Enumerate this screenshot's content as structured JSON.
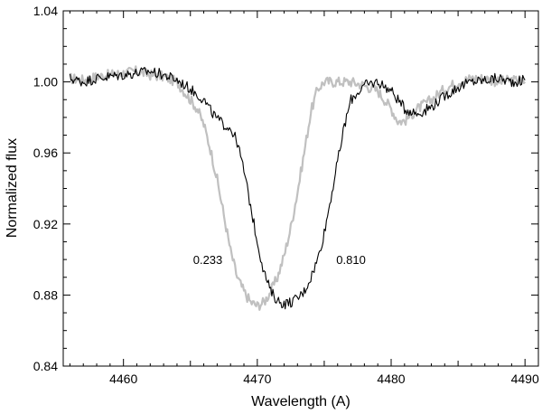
{
  "chart_data": {
    "type": "line",
    "xlabel": "Wavelength (A)",
    "ylabel": "Normalized flux",
    "xlim": [
      4455.5,
      4491
    ],
    "ylim": [
      0.84,
      1.04
    ],
    "x_ticks": [
      4460,
      4470,
      4480,
      4490
    ],
    "x_tick_labels": [
      "4460",
      "4470",
      "4480",
      "4490"
    ],
    "y_ticks": [
      0.84,
      0.88,
      0.92,
      0.96,
      1.0,
      1.04
    ],
    "y_tick_labels": [
      "0.84",
      "0.88",
      "0.92",
      "0.96",
      "1.00",
      "1.04"
    ],
    "grid": false,
    "annotations": [
      {
        "text": "0.233",
        "x": 4466.3,
        "y": 0.9
      },
      {
        "text": "0.810",
        "x": 4477.0,
        "y": 0.9
      }
    ],
    "series": [
      {
        "color": "#c0c0c0",
        "x": [
          4456.0,
          4457.0,
          4458.0,
          4459.0,
          4460.0,
          4461.0,
          4462.0,
          4463.0,
          4464.0,
          4465.0,
          4465.5,
          4466.0,
          4466.5,
          4467.0,
          4467.5,
          4468.0,
          4468.5,
          4469.0,
          4469.5,
          4470.0,
          4470.5,
          4471.0,
          4471.5,
          4472.0,
          4472.5,
          4473.0,
          4473.5,
          4474.0,
          4474.5,
          4475.0,
          4476.0,
          4477.0,
          4478.0,
          4479.0,
          4480.0,
          4480.5,
          4481.0,
          4482.0,
          4483.0,
          4484.0,
          4485.0,
          4486.0,
          4487.0,
          4488.0,
          4489.0,
          4490.0
        ],
        "y": [
          1.002,
          1.001,
          1.003,
          1.004,
          1.005,
          1.006,
          1.004,
          1.003,
          1.0,
          0.99,
          0.985,
          0.976,
          0.962,
          0.945,
          0.925,
          0.905,
          0.89,
          0.882,
          0.876,
          0.874,
          0.876,
          0.882,
          0.89,
          0.902,
          0.918,
          0.938,
          0.96,
          0.983,
          0.996,
          1.0,
          1.0,
          1.0,
          0.998,
          0.995,
          0.985,
          0.978,
          0.978,
          0.985,
          0.99,
          0.996,
          1.0,
          1.002,
          1.002,
          1.0,
          1.001,
          1.0
        ]
      },
      {
        "color": "#000000",
        "x": [
          4456.0,
          4457.0,
          4458.0,
          4459.0,
          4460.0,
          4461.0,
          4462.0,
          4463.0,
          4464.0,
          4465.0,
          4466.0,
          4466.5,
          4467.0,
          4467.5,
          4468.0,
          4468.5,
          4469.0,
          4469.5,
          4470.0,
          4470.5,
          4471.0,
          4471.5,
          4472.0,
          4472.5,
          4473.0,
          4473.5,
          4474.0,
          4474.5,
          4475.0,
          4475.5,
          4476.0,
          4476.5,
          4477.0,
          4478.0,
          4479.0,
          4480.0,
          4481.0,
          4482.0,
          4483.0,
          4484.0,
          4485.0,
          4486.0,
          4487.0,
          4488.0,
          4489.0,
          4490.0
        ],
        "y": [
          1.002,
          1.0,
          1.002,
          1.003,
          1.004,
          1.005,
          1.006,
          1.004,
          1.001,
          0.996,
          0.99,
          0.984,
          0.979,
          0.976,
          0.974,
          0.966,
          0.95,
          0.93,
          0.91,
          0.893,
          0.882,
          0.877,
          0.875,
          0.876,
          0.878,
          0.882,
          0.89,
          0.9,
          0.915,
          0.935,
          0.955,
          0.975,
          0.99,
          0.998,
          1.0,
          0.995,
          0.985,
          0.982,
          0.986,
          0.992,
          0.997,
          1.0,
          1.001,
          1.002,
          1.0,
          1.001
        ]
      }
    ]
  }
}
